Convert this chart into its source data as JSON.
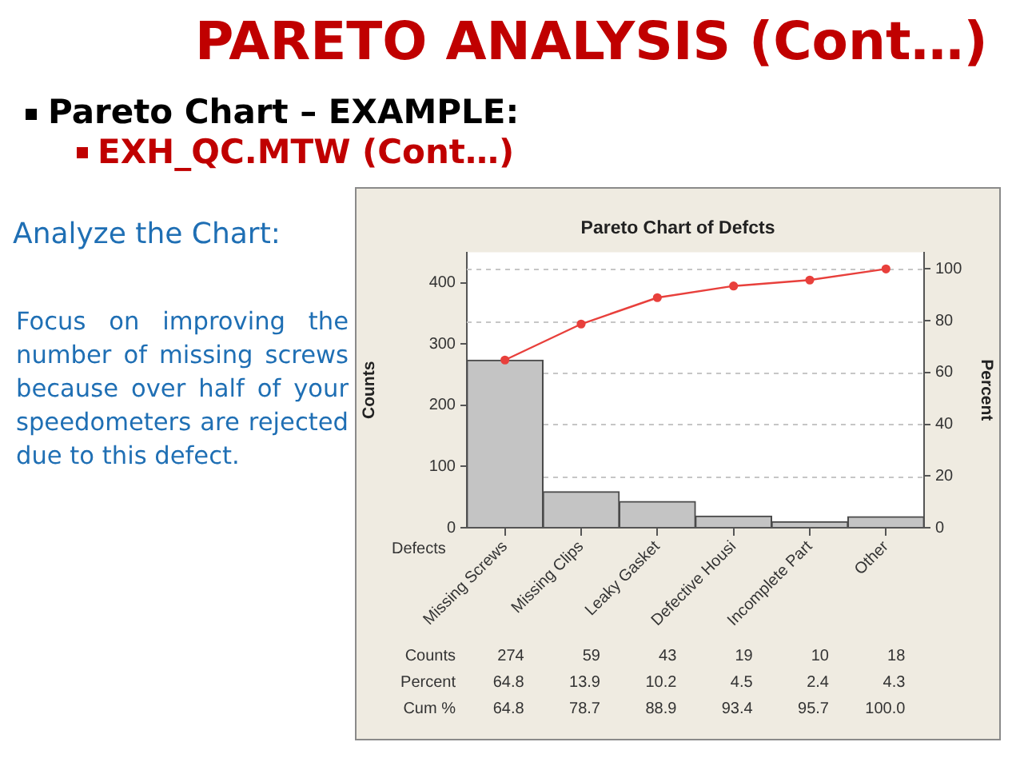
{
  "chart_data": {
    "type": "bar",
    "title": "Pareto Chart of Defcts",
    "xlabel": "Defects",
    "ylabel": "Counts",
    "y2label": "Percent",
    "categories": [
      "Missing Screws",
      "Missing Clips",
      "Leaky Gasket",
      "Defective Housi",
      "Incomplete Part",
      "Other"
    ],
    "series": [
      {
        "color": "#c4c4c4",
        "values": [
          274,
          59,
          43,
          19,
          10,
          18
        ],
        "value_labels": [
          "274",
          "59",
          "43",
          "19",
          "10",
          "18"
        ]
      },
      {
        "type": "line",
        "axis": "y2",
        "color": "#e8403c",
        "values": [
          64.8,
          78.7,
          88.9,
          93.4,
          95.7,
          100.0
        ],
        "value_labels": [
          "64.8",
          "78.7",
          "88.9",
          "93.4",
          "95.7",
          "100.0"
        ]
      }
    ],
    "ylim": [
      0,
      450
    ],
    "yticks": [
      0,
      100,
      200,
      300,
      400
    ],
    "y2lim": [
      0,
      106.4
    ],
    "y2ticks": [
      0,
      20,
      40,
      60,
      80,
      100
    ],
    "grid": "y2",
    "marker": "circle",
    "line_style": "solid",
    "legend": false,
    "annotations": [
      "PARETO ANALYSIS (Cont…)",
      "Pareto Chart – EXAMPLE:",
      "EXH_QC.MTW (Cont…)",
      "Analyze the Chart:",
      "Focus on improving the number of missing screws because over half of your speedometers are rejected due to this defect.",
      "Counts",
      "Percent",
      "Cum %",
      "64.8",
      "13.9",
      "10.2",
      "4.5",
      "2.4",
      "4.3"
    ]
  }
}
